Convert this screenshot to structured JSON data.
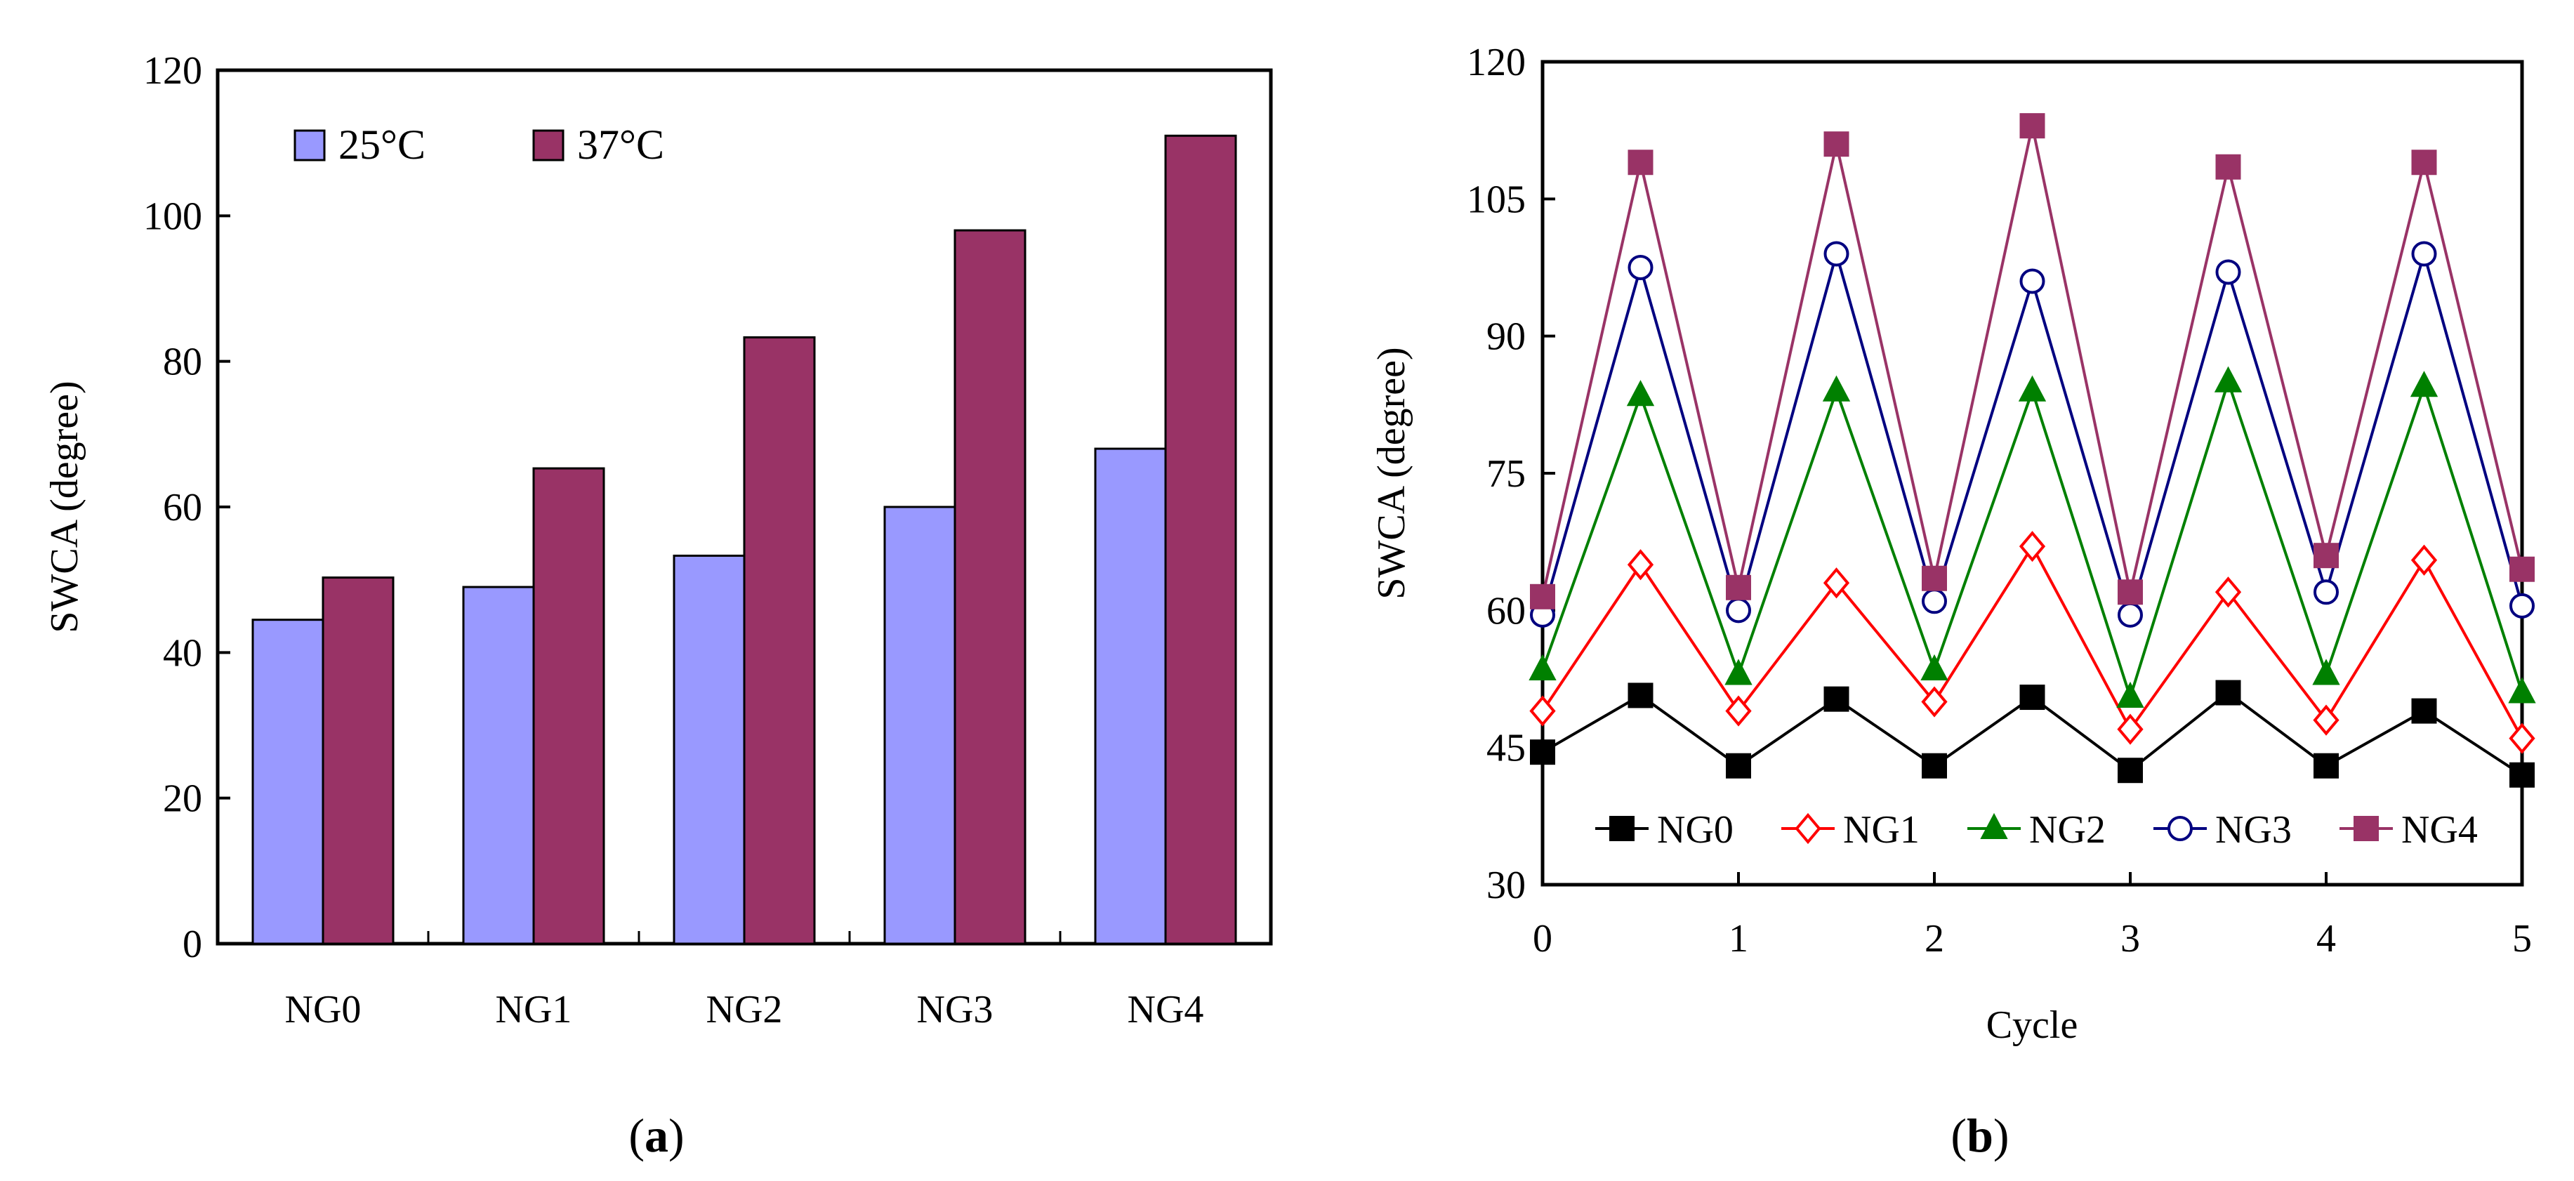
{
  "chart_data": [
    {
      "panel": "(a)",
      "panel_letter": "a",
      "type": "bar",
      "title": "",
      "xlabel": "",
      "ylabel": "SWCA (degree)",
      "ylim": [
        0,
        120
      ],
      "yticks": [
        0,
        20,
        40,
        60,
        80,
        100,
        120
      ],
      "categories": [
        "NG0",
        "NG1",
        "NG2",
        "NG3",
        "NG4"
      ],
      "legend_position": "top-left",
      "series": [
        {
          "name": "25°C",
          "color": "#9999ff",
          "values": [
            44.5,
            49.0,
            53.3,
            60.0,
            68.0
          ]
        },
        {
          "name": "37°C",
          "color": "#993366",
          "values": [
            50.3,
            65.3,
            83.3,
            98.0,
            111.0
          ]
        }
      ]
    },
    {
      "panel": "(b)",
      "panel_letter": "b",
      "type": "line",
      "title": "",
      "xlabel": "Cycle",
      "ylabel": "SWCA (degree)",
      "xlim": [
        0,
        5
      ],
      "ylim": [
        30,
        120
      ],
      "xticks": [
        0,
        1,
        2,
        3,
        4,
        5
      ],
      "yticks": [
        30,
        45,
        60,
        75,
        90,
        105,
        120
      ],
      "x": [
        0,
        0.5,
        1,
        1.5,
        2,
        2.5,
        3,
        3.5,
        4,
        4.5,
        5
      ],
      "legend_position": "bottom",
      "series": [
        {
          "name": "NG0",
          "color": "#000000",
          "marker": "filled-square",
          "values": [
            44.5,
            50.7,
            43.0,
            50.3,
            43.0,
            50.5,
            42.5,
            51.0,
            43.0,
            49.0,
            42.0
          ]
        },
        {
          "name": "NG1",
          "color": "#ff0000",
          "marker": "open-diamond",
          "values": [
            49.0,
            65.0,
            49.0,
            63.0,
            50.0,
            67.0,
            47.0,
            62.0,
            48.0,
            65.5,
            46.0
          ]
        },
        {
          "name": "NG2",
          "color": "#008000",
          "marker": "filled-triangle",
          "values": [
            53.5,
            83.5,
            53.0,
            84.0,
            53.5,
            84.0,
            50.5,
            85.0,
            53.0,
            84.5,
            51.0
          ]
        },
        {
          "name": "NG3",
          "color": "#000080",
          "marker": "open-circle",
          "values": [
            59.5,
            97.5,
            60.0,
            99.0,
            61.0,
            96.0,
            59.5,
            97.0,
            62.0,
            99.0,
            60.5
          ]
        },
        {
          "name": "NG4",
          "color": "#993366",
          "marker": "filled-square",
          "values": [
            61.5,
            109.0,
            62.5,
            111.0,
            63.5,
            113.0,
            62.0,
            108.5,
            66.0,
            109.0,
            64.5
          ]
        }
      ]
    }
  ]
}
